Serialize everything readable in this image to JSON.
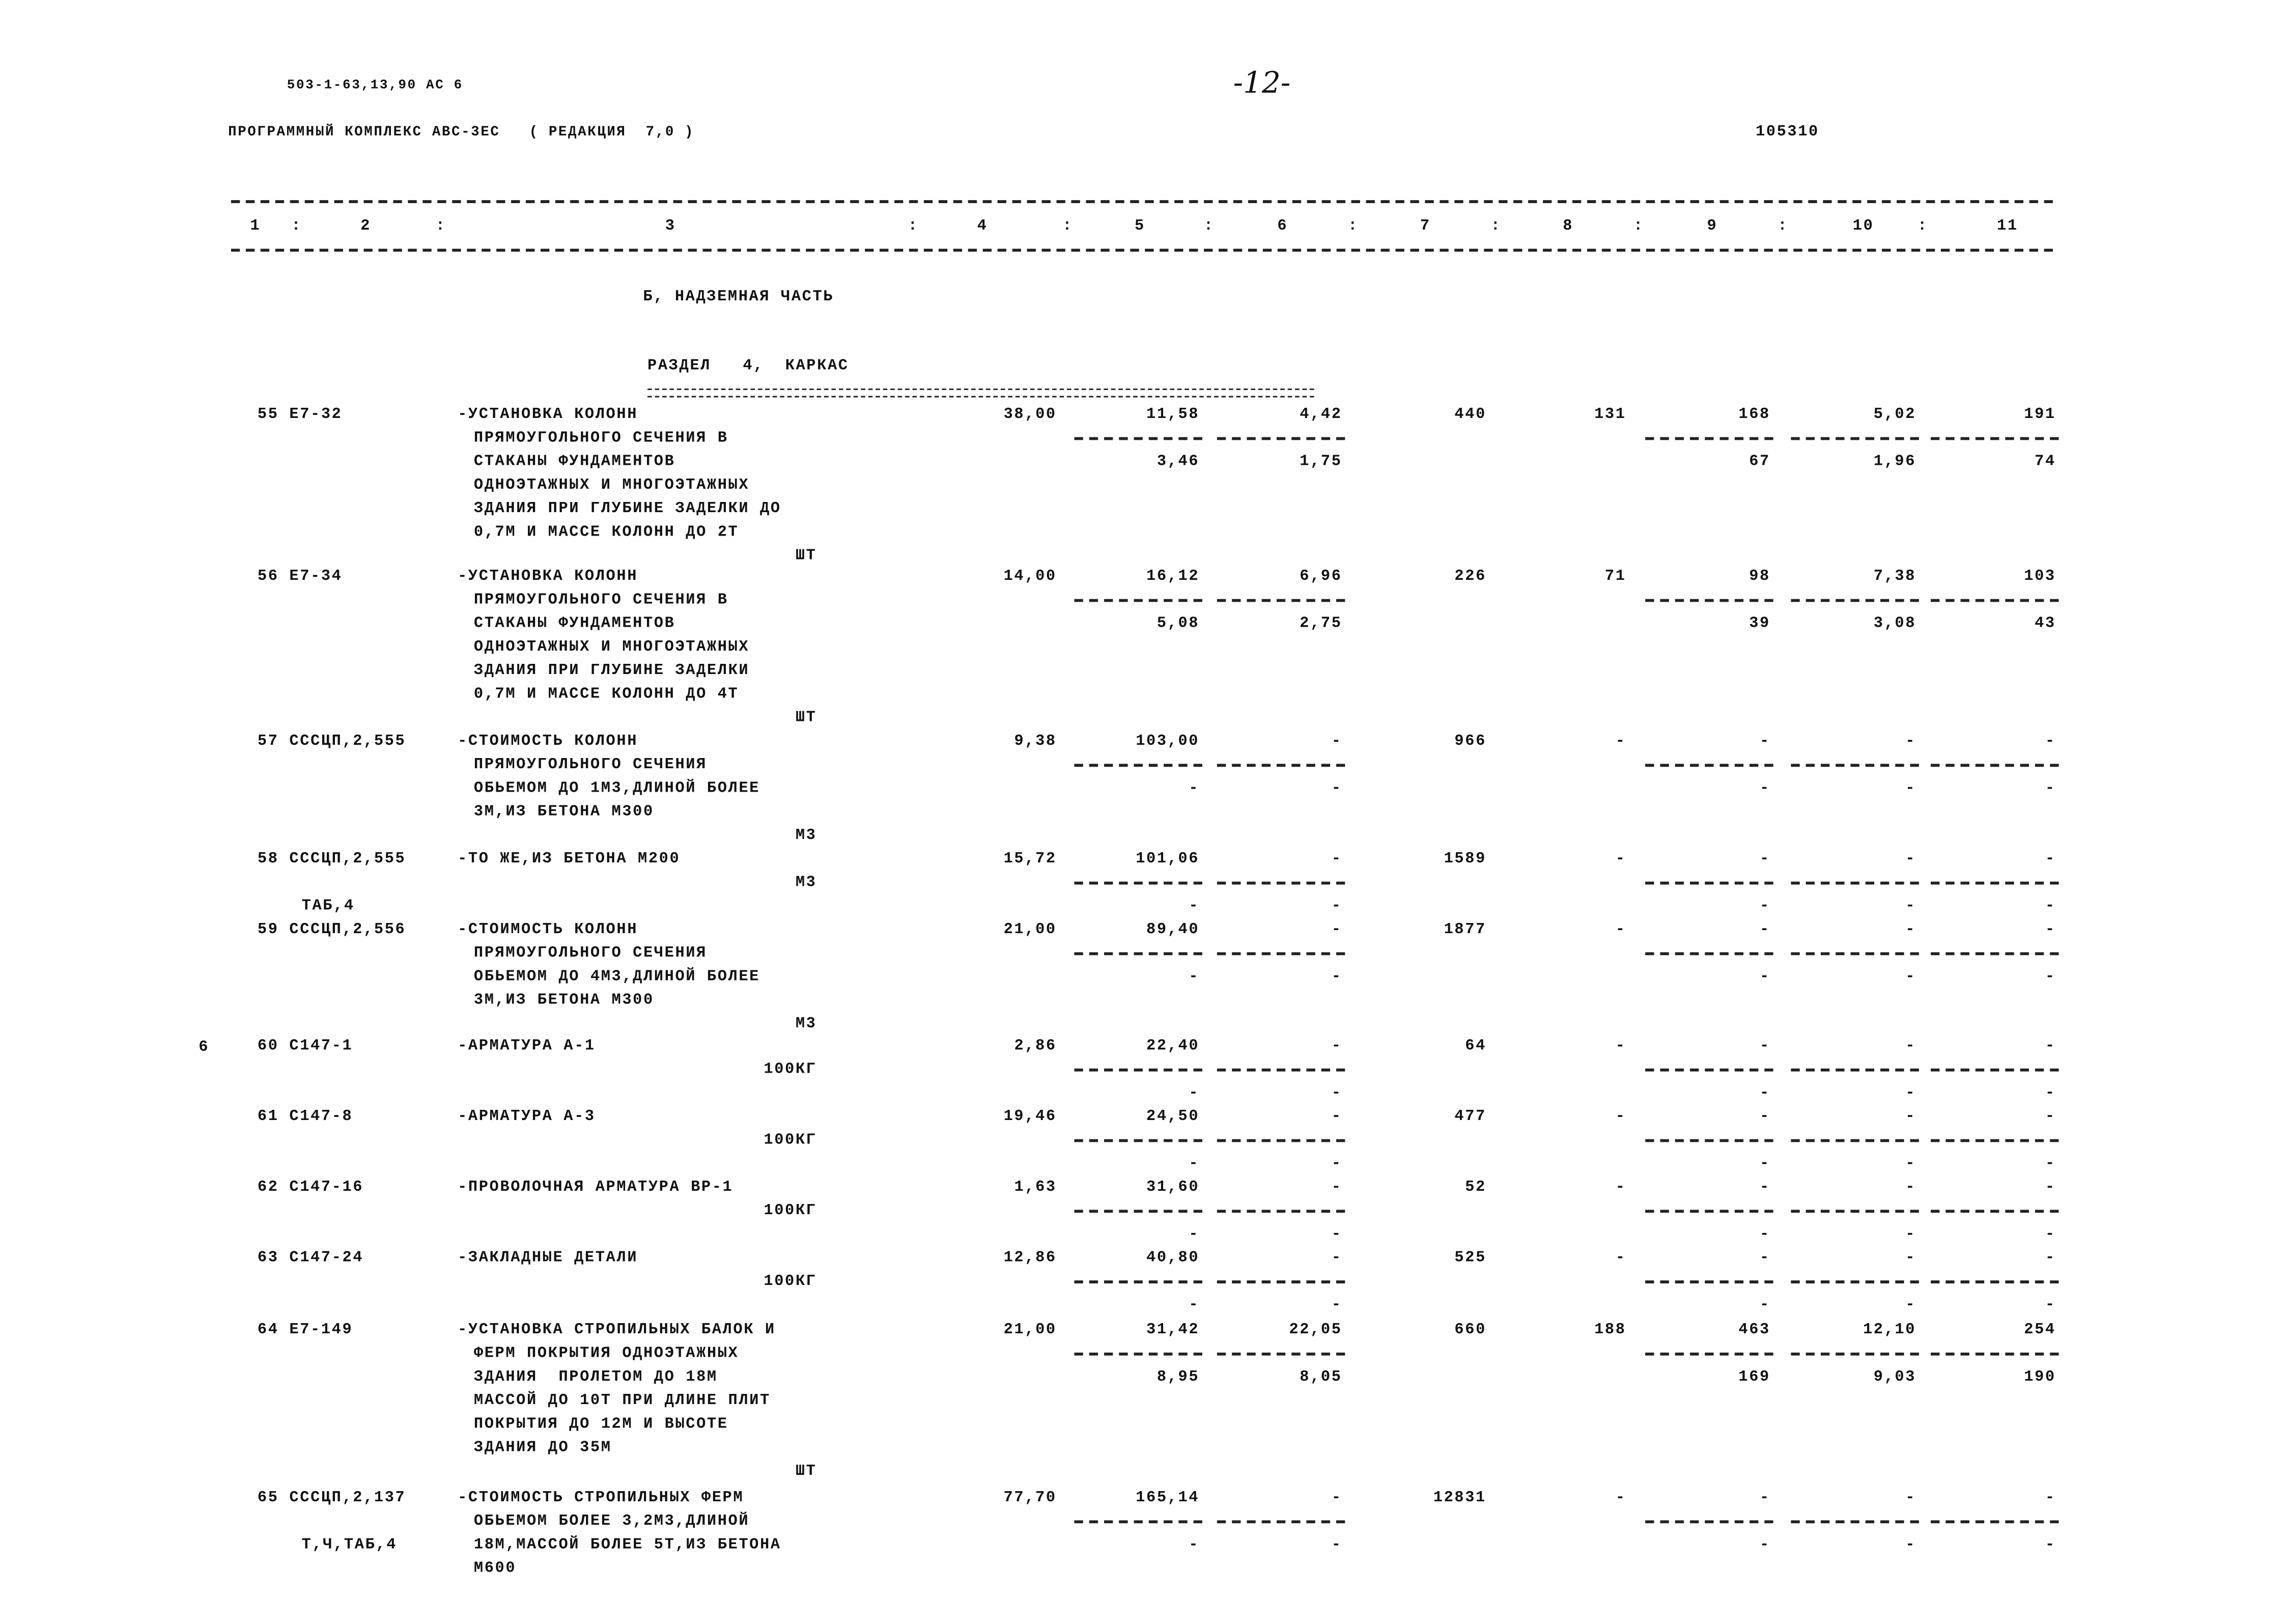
{
  "header": {
    "doc_code": "503-1-63,13,90 АС 6",
    "page_number": "-12-",
    "program": "ПРОГРАММНЫЙ КОМПЛЕКС АВС-3ЕС   ( РЕДАКЦИЯ  7,0 )",
    "code_right": "105310"
  },
  "columns": [
    "1",
    "2",
    "3",
    "4",
    "5",
    "6",
    "7",
    "8",
    "9",
    "10",
    "11"
  ],
  "column_separator": ":",
  "section": "Б, НАДЗЕМНАЯ ЧАСТЬ",
  "subsection": "РАЗДЕЛ   4,  КАРКАС",
  "margin_mark": "6",
  "records": [
    {
      "code": "55 Е7-32",
      "code2": "",
      "desc": [
        "-УСТАНОВКА КОЛОНН",
        "ПРЯМОУГОЛЬНОГО СЕЧЕНИЯ В",
        "СТАКАНЫ ФУНДАМЕНТОВ",
        "ОДНОЭТАЖНЫХ И МНОГОЭТАЖНЫХ",
        "ЗДАНИЯ ПРИ ГЛУБИНЕ ЗАДЕЛКИ ДО",
        "0,7М И МАССЕ КОЛОНН ДО 2Т"
      ],
      "unit": "ШТ",
      "c4": "38,00",
      "c5": [
        "11,58",
        "3,46"
      ],
      "c6": [
        "4,42",
        "1,75"
      ],
      "c7": "440",
      "c8": "131",
      "c9": [
        "168",
        "67"
      ],
      "c10": [
        "5,02",
        "1,96"
      ],
      "c11": [
        "191",
        "74"
      ]
    },
    {
      "code": "56 Е7-34",
      "code2": "",
      "desc": [
        "-УСТАНОВКА КОЛОНН",
        "ПРЯМОУГОЛЬНОГО СЕЧЕНИЯ В",
        "СТАКАНЫ ФУНДАМЕНТОВ",
        "ОДНОЭТАЖНЫХ И МНОГОЭТАЖНЫХ",
        "ЗДАНИЯ ПРИ ГЛУБИНЕ ЗАДЕЛКИ",
        "0,7М И МАССЕ КОЛОНН ДО 4Т"
      ],
      "unit": "ШТ",
      "c4": "14,00",
      "c5": [
        "16,12",
        "5,08"
      ],
      "c6": [
        "6,96",
        "2,75"
      ],
      "c7": "226",
      "c8": "71",
      "c9": [
        "98",
        "39"
      ],
      "c10": [
        "7,38",
        "3,08"
      ],
      "c11": [
        "103",
        "43"
      ]
    },
    {
      "code": "57 СССЦП,2,555",
      "code2": "",
      "desc": [
        "-СТОИМОСТЬ КОЛОНН",
        "ПРЯМОУГОЛЬНОГО СЕЧЕНИЯ",
        "ОБЬЕМОМ ДО 1М3,ДЛИНОЙ БОЛЕЕ",
        "3М,ИЗ БЕТОНА М300"
      ],
      "unit": "М3",
      "c4": "9,38",
      "c5": [
        "103,00",
        "-"
      ],
      "c6": [
        "-",
        "-"
      ],
      "c7": "966",
      "c8": "-",
      "c9": [
        "-",
        "-"
      ],
      "c10": [
        "-",
        "-"
      ],
      "c11": [
        "-",
        "-"
      ]
    },
    {
      "code": "58 СССЦП,2,555",
      "code2": "ТАБ,4",
      "desc": [
        "-ТО ЖЕ,ИЗ БЕТОНА М200"
      ],
      "unit": "М3",
      "c4": "15,72",
      "c5": [
        "101,06",
        "-"
      ],
      "c6": [
        "-",
        "-"
      ],
      "c7": "1589",
      "c8": "-",
      "c9": [
        "-",
        "-"
      ],
      "c10": [
        "-",
        "-"
      ],
      "c11": [
        "-",
        "-"
      ]
    },
    {
      "code": "59 СССЦП,2,556",
      "code2": "",
      "desc": [
        "-СТОИМОСТЬ КОЛОНН",
        "ПРЯМОУГОЛЬНОГО СЕЧЕНИЯ",
        "ОБЬЕМОМ ДО 4М3,ДЛИНОЙ БОЛЕЕ",
        "3М,ИЗ БЕТОНА М300"
      ],
      "unit": "М3",
      "c4": "21,00",
      "c5": [
        "89,40",
        "-"
      ],
      "c6": [
        "-",
        "-"
      ],
      "c7": "1877",
      "c8": "-",
      "c9": [
        "-",
        "-"
      ],
      "c10": [
        "-",
        "-"
      ],
      "c11": [
        "-",
        "-"
      ]
    },
    {
      "code": "60 С147-1",
      "code2": "",
      "desc": [
        "-АРМАТУРА А-1"
      ],
      "unit": "100КГ",
      "c4": "2,86",
      "c5": [
        "22,40",
        "-"
      ],
      "c6": [
        "-",
        "-"
      ],
      "c7": "64",
      "c8": "-",
      "c9": [
        "-",
        "-"
      ],
      "c10": [
        "-",
        "-"
      ],
      "c11": [
        "-",
        "-"
      ]
    },
    {
      "code": "61 С147-8",
      "code2": "",
      "desc": [
        "-АРМАТУРА А-3"
      ],
      "unit": "100КГ",
      "c4": "19,46",
      "c5": [
        "24,50",
        "-"
      ],
      "c6": [
        "-",
        "-"
      ],
      "c7": "477",
      "c8": "-",
      "c9": [
        "-",
        "-"
      ],
      "c10": [
        "-",
        "-"
      ],
      "c11": [
        "-",
        "-"
      ]
    },
    {
      "code": "62 С147-16",
      "code2": "",
      "desc": [
        "-ПРОВОЛОЧНАЯ АРМАТУРА ВР-1"
      ],
      "unit": "100КГ",
      "c4": "1,63",
      "c5": [
        "31,60",
        "-"
      ],
      "c6": [
        "-",
        "-"
      ],
      "c7": "52",
      "c8": "-",
      "c9": [
        "-",
        "-"
      ],
      "c10": [
        "-",
        "-"
      ],
      "c11": [
        "-",
        "-"
      ]
    },
    {
      "code": "63 С147-24",
      "code2": "",
      "desc": [
        "-ЗАКЛАДНЫЕ ДЕТАЛИ"
      ],
      "unit": "100КГ",
      "c4": "12,86",
      "c5": [
        "40,80",
        "-"
      ],
      "c6": [
        "-",
        "-"
      ],
      "c7": "525",
      "c8": "-",
      "c9": [
        "-",
        "-"
      ],
      "c10": [
        "-",
        "-"
      ],
      "c11": [
        "-",
        "-"
      ]
    },
    {
      "code": "64 Е7-149",
      "code2": "",
      "desc": [
        "-УСТАНОВКА СТРОПИЛЬНЫХ БАЛОК И",
        "ФЕРМ ПОКРЫТИЯ ОДНОЭТАЖНЫХ",
        "ЗДАНИЯ  ПРОЛЕТОМ ДО 18М",
        "МАССОЙ ДО 10Т ПРИ ДЛИНЕ ПЛИТ",
        "ПОКРЫТИЯ ДО 12М И ВЫСОТЕ",
        "ЗДАНИЯ ДО 35М"
      ],
      "unit": "ШТ",
      "c4": "21,00",
      "c5": [
        "31,42",
        "8,95"
      ],
      "c6": [
        "22,05",
        "8,05"
      ],
      "c7": "660",
      "c8": "188",
      "c9": [
        "463",
        "169"
      ],
      "c10": [
        "12,10",
        "9,03"
      ],
      "c11": [
        "254",
        "190"
      ]
    },
    {
      "code": "65 СССЦП,2,137",
      "code2": "Т,Ч,ТАБ,4",
      "desc": [
        "-СТОИМОСТЬ СТРОПИЛЬНЫХ ФЕРМ",
        "ОБЬЕМОМ БОЛЕЕ 3,2М3,ДЛИНОЙ",
        "18М,МАССОЙ БОЛЕЕ 5Т,ИЗ БЕТОНА",
        "М600"
      ],
      "unit": "",
      "c4": "77,70",
      "c5": [
        "165,14",
        "-"
      ],
      "c6": [
        "-",
        "-"
      ],
      "c7": "12831",
      "c8": "-",
      "c9": [
        "-",
        "-"
      ],
      "c10": [
        "-",
        "-"
      ],
      "c11": [
        "-",
        "-"
      ]
    }
  ]
}
